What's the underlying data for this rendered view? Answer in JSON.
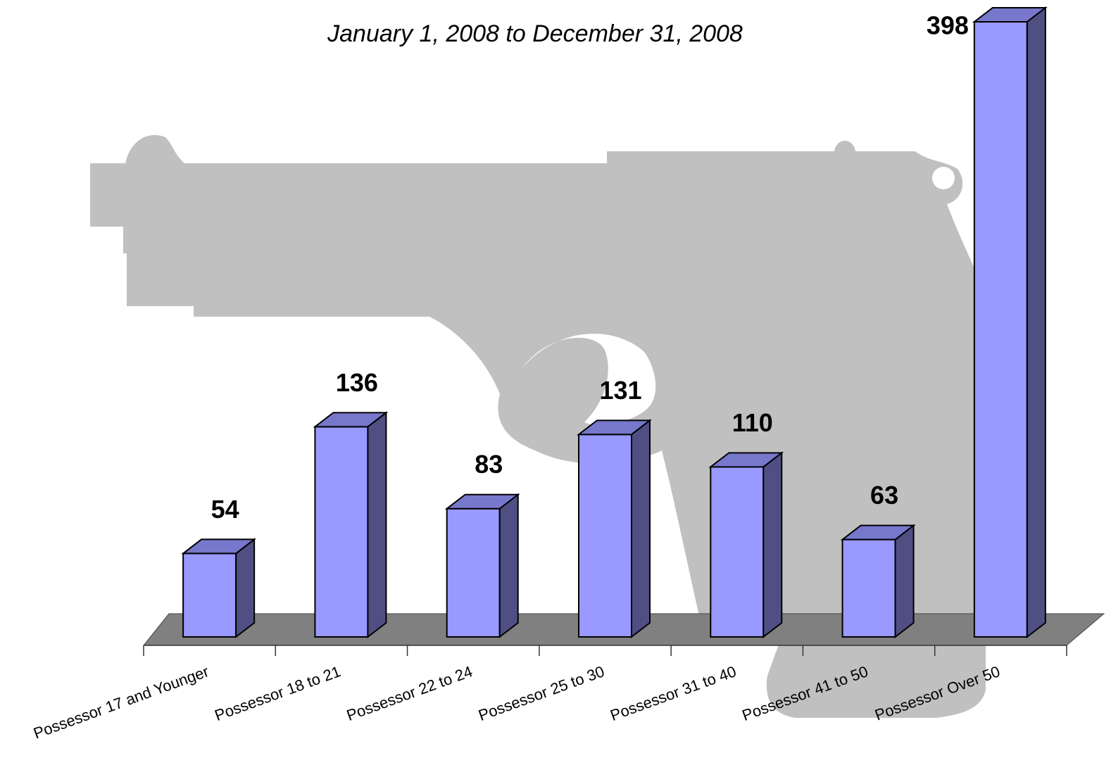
{
  "chart_data": {
    "type": "bar3d",
    "subtitle": "January 1, 2008 to December 31, 2008",
    "categories": [
      "Possessor 17 and Younger",
      "Possessor 18 to 21",
      "Possessor 22 to 24",
      "Possessor 25 to 30",
      "Possessor 31 to 40",
      "Possessor 41 to 50",
      "Possessor Over 50"
    ],
    "values": [
      54,
      136,
      83,
      131,
      110,
      63,
      398
    ],
    "color": "#9999ff"
  }
}
